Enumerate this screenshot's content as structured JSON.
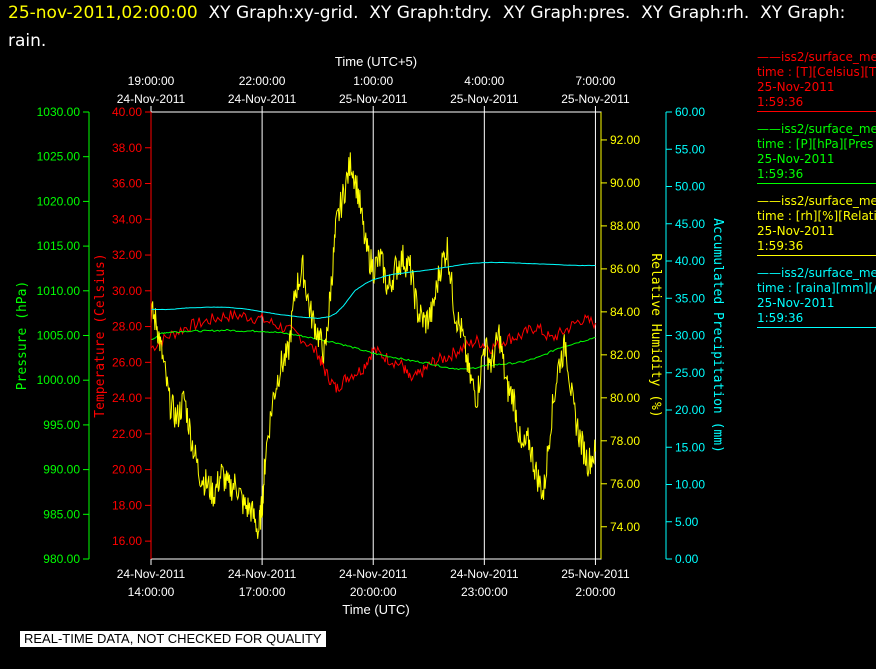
{
  "header": {
    "timestamp": "25-nov-2011,02:00:00",
    "title_rest": "  XY Graph:xy-grid.  XY Graph:tdry.  XY Graph:pres.  XY Graph:rh.  XY Graph:",
    "title_line2": "rain."
  },
  "notice": "REAL-TIME DATA, NOT CHECKED FOR QUALITY",
  "legend": [
    {
      "name": "——iss2/surface_me",
      "line2": "time : [T][Celsius][T",
      "date": "25-Nov-2011",
      "time": "1:59:36",
      "color": "#ff0000"
    },
    {
      "name": "——iss2/surface_me",
      "line2": "time : [P][hPa][Pres",
      "date": "25-Nov-2011",
      "time": "1:59:36",
      "color": "#00ff00"
    },
    {
      "name": "——iss2/surface_me",
      "line2": "time : [rh][%][Relati",
      "date": "25-Nov-2011",
      "time": "1:59:36",
      "color": "#ffff00"
    },
    {
      "name": "——iss2/surface_me",
      "line2": "time : [raina][mm][A",
      "date": "25-Nov-2011",
      "time": "1:59:36",
      "color": "#00ffff"
    }
  ],
  "chart_data": {
    "type": "line",
    "top_axis_title": "Time (UTC+5)",
    "bottom_axis_title": "Time (UTC)",
    "x_ticks_bottom": [
      {
        "t": 0,
        "l1": "24-Nov-2011",
        "l2": "14:00:00"
      },
      {
        "t": 3,
        "l1": "24-Nov-2011",
        "l2": "17:00:00"
      },
      {
        "t": 6,
        "l1": "24-Nov-2011",
        "l2": "20:00:00"
      },
      {
        "t": 9,
        "l1": "24-Nov-2011",
        "l2": "23:00:00"
      },
      {
        "t": 12,
        "l1": "25-Nov-2011",
        "l2": "2:00:00"
      }
    ],
    "x_ticks_top": [
      {
        "t": 0,
        "l1": "19:00:00",
        "l2": "24-Nov-2011"
      },
      {
        "t": 3,
        "l1": "22:00:00",
        "l2": "24-Nov-2011"
      },
      {
        "t": 6,
        "l1": "1:00:00",
        "l2": "25-Nov-2011"
      },
      {
        "t": 9,
        "l1": "4:00:00",
        "l2": "25-Nov-2011"
      },
      {
        "t": 12,
        "l1": "7:00:00",
        "l2": "25-Nov-2011"
      }
    ],
    "xlim_hours_since_14utc": [
      0,
      12.15
    ],
    "grid_x": true,
    "axes": {
      "pressure": {
        "label": "Pressure (hPa)",
        "color": "#00ff00",
        "min": 980,
        "max": 1030,
        "ticks": [
          "980.00",
          "985.00",
          "990.00",
          "995.00",
          "1000.00",
          "1005.00",
          "1010.00",
          "1015.00",
          "1020.00",
          "1025.00",
          "1030.00"
        ]
      },
      "temperature": {
        "label": "Temperature (Celsius)",
        "color": "#ff0000",
        "min": 15,
        "max": 40,
        "ticks": [
          "16.00",
          "18.00",
          "20.00",
          "22.00",
          "24.00",
          "26.00",
          "28.00",
          "30.00",
          "32.00",
          "34.00",
          "36.00",
          "38.00",
          "40.00"
        ]
      },
      "rh": {
        "label": "Relative Humidity (%)",
        "color": "#ffff00",
        "min": 72.5,
        "max": 93.3,
        "ticks": [
          "74.00",
          "76.00",
          "78.00",
          "80.00",
          "82.00",
          "84.00",
          "86.00",
          "88.00",
          "90.00",
          "92.00"
        ]
      },
      "rain": {
        "label": "Accumulated Precipitation (mm)",
        "color": "#00ffff",
        "min": 0,
        "max": 60,
        "ticks": [
          "0.00",
          "5.00",
          "10.00",
          "15.00",
          "20.00",
          "25.00",
          "30.00",
          "35.00",
          "40.00",
          "45.00",
          "50.00",
          "55.00",
          "60.00"
        ]
      }
    },
    "series": [
      {
        "name": "surface_me [T]",
        "axis": "temperature",
        "color": "#ff0000",
        "x": [
          0,
          0.5,
          1.0,
          1.5,
          2.0,
          2.5,
          3.0,
          3.5,
          4.0,
          4.5,
          4.7,
          5.0,
          5.3,
          5.7,
          6.0,
          6.4,
          6.8,
          7.0,
          7.3,
          7.6,
          8.0,
          8.4,
          8.8,
          9.2,
          9.6,
          10.0,
          10.4,
          10.8,
          11.2,
          11.6,
          12.0
        ],
        "y": [
          26.8,
          27.5,
          28.0,
          28.3,
          28.6,
          28.6,
          28.4,
          28.0,
          27.5,
          26.5,
          25.5,
          24.5,
          25.2,
          25.6,
          26.7,
          26.2,
          25.8,
          25.0,
          25.4,
          26.0,
          26.3,
          26.8,
          27.2,
          26.8,
          27.3,
          27.5,
          28.0,
          27.3,
          27.8,
          28.4,
          28.2
        ]
      },
      {
        "name": "surface_me [P]",
        "axis": "pressure",
        "color": "#00ff00",
        "x": [
          0,
          0.3,
          0.6,
          1.0,
          1.5,
          2.0,
          2.5,
          3.0,
          3.5,
          4.0,
          4.5,
          5.0,
          5.5,
          6.0,
          6.5,
          7.0,
          7.5,
          8.0,
          8.5,
          9.0,
          9.5,
          10.0,
          10.5,
          11.0,
          11.5,
          12.0
        ],
        "y": [
          1004.5,
          1005.3,
          1005.4,
          1005.5,
          1005.5,
          1005.6,
          1005.5,
          1005.5,
          1005.3,
          1005.0,
          1004.6,
          1004.2,
          1003.6,
          1003.0,
          1002.6,
          1002.2,
          1001.9,
          1001.4,
          1001.2,
          1001.6,
          1001.8,
          1002.0,
          1002.6,
          1003.6,
          1004.2,
          1004.8
        ]
      },
      {
        "name": "surface_me [rh]",
        "axis": "rh",
        "color": "#ffff00",
        "x": [
          0,
          0.15,
          0.3,
          0.5,
          0.7,
          0.9,
          1.1,
          1.3,
          1.5,
          1.7,
          1.9,
          2.1,
          2.3,
          2.5,
          2.7,
          2.9,
          3.0,
          3.1,
          3.3,
          3.5,
          3.7,
          3.9,
          4.1,
          4.3,
          4.5,
          4.7,
          4.85,
          5.0,
          5.2,
          5.4,
          5.6,
          5.8,
          6.0,
          6.2,
          6.4,
          6.6,
          6.8,
          7.0,
          7.2,
          7.4,
          7.6,
          7.8,
          8.0,
          8.2,
          8.4,
          8.6,
          8.8,
          9.0,
          9.2,
          9.4,
          9.6,
          9.8,
          10.0,
          10.2,
          10.4,
          10.6,
          10.8,
          11.0,
          11.2,
          11.4,
          11.6,
          11.8,
          12.0
        ],
        "y": [
          84.0,
          83.5,
          82.0,
          79.8,
          79.0,
          80.0,
          78.0,
          76.5,
          76.0,
          75.5,
          76.5,
          75.8,
          76.0,
          75.0,
          74.8,
          73.8,
          75.0,
          77.5,
          80.0,
          81.5,
          82.0,
          85.0,
          86.0,
          84.0,
          83.0,
          82.0,
          85.0,
          88.0,
          89.5,
          91.0,
          89.5,
          87.0,
          86.0,
          86.5,
          85.0,
          86.0,
          86.5,
          86.0,
          84.0,
          83.5,
          84.0,
          86.0,
          87.0,
          84.0,
          83.0,
          81.0,
          80.0,
          82.5,
          81.5,
          83.0,
          80.5,
          80.0,
          77.5,
          78.0,
          76.5,
          75.5,
          79.0,
          81.5,
          82.5,
          79.5,
          78.0,
          77.0,
          77.5
        ]
      },
      {
        "name": "surface_me [raina]",
        "axis": "rain",
        "color": "#00ffff",
        "x": [
          0,
          0.5,
          1.0,
          1.5,
          2.0,
          2.5,
          3.0,
          3.5,
          4.0,
          4.5,
          4.8,
          5.0,
          5.2,
          5.5,
          5.8,
          6.0,
          6.5,
          7.0,
          7.5,
          8.0,
          8.5,
          9.0,
          9.5,
          10.0,
          10.5,
          11.0,
          11.5,
          12.0
        ],
        "y": [
          33.5,
          33.5,
          33.7,
          33.8,
          33.8,
          33.6,
          33.2,
          32.8,
          32.5,
          32.3,
          32.5,
          33.0,
          34.0,
          36.0,
          37.0,
          37.5,
          38.2,
          38.5,
          38.8,
          39.2,
          39.6,
          39.8,
          39.8,
          39.7,
          39.6,
          39.5,
          39.4,
          39.4
        ]
      }
    ]
  }
}
